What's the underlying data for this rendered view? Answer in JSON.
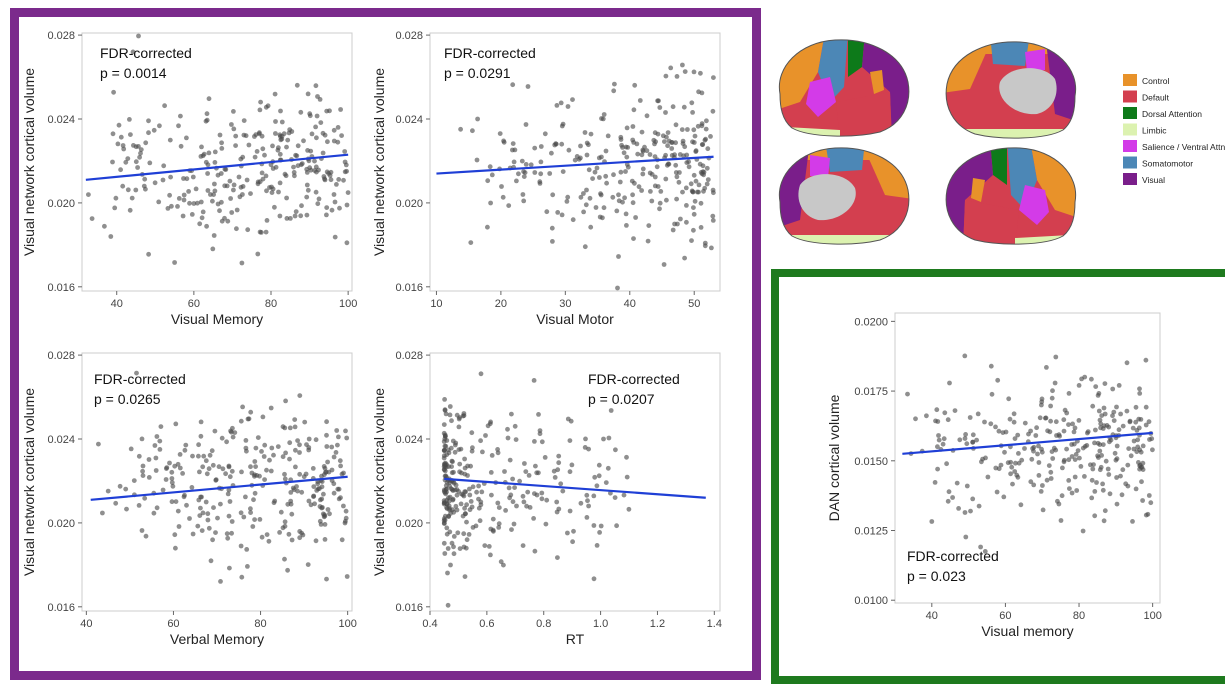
{
  "colors": {
    "frame_purple": "#7b2a8c",
    "frame_green": "#1e7a1e",
    "regression_line": "#1f3fd6",
    "points": "#4a4a4a",
    "panel_border": "#cccccc"
  },
  "legend": {
    "items": [
      {
        "label": "Control",
        "color": "#e8922a"
      },
      {
        "label": "Default",
        "color": "#d33f4f"
      },
      {
        "label": "Dorsal Attention",
        "color": "#0d7a1a"
      },
      {
        "label": "Limbic",
        "color": "#dcf2b0"
      },
      {
        "label": "Salience / Ventral Attn",
        "color": "#d33be8"
      },
      {
        "label": "Somatomotor",
        "color": "#4c87b6"
      },
      {
        "label": "Visual",
        "color": "#7a1e8a"
      }
    ]
  },
  "chart_data": [
    {
      "type": "scatter",
      "xlabel": "Visual Memory",
      "ylabel": "Visual network cortical volume",
      "annotation": [
        "FDR-corrected",
        "p = 0.0014"
      ],
      "xlim": [
        31,
        101
      ],
      "ylim": [
        0.0158,
        0.0281
      ],
      "xticks": [
        40,
        60,
        80,
        100
      ],
      "xtick_labels": [
        "40",
        "60",
        "80",
        "100"
      ],
      "yticks": [
        0.016,
        0.02,
        0.024,
        0.028
      ],
      "ytick_labels": [
        "0.016",
        "0.020",
        "0.024",
        "0.028"
      ],
      "fit": {
        "x": [
          32,
          100
        ],
        "y": [
          0.0211,
          0.0223
        ]
      },
      "x_range": [
        32,
        100
      ],
      "x_skew": 0.6,
      "y_mean": 0.0217,
      "y_sd": 0.0018,
      "n": 300,
      "seed": 11
    },
    {
      "type": "scatter",
      "xlabel": "Visual Motor",
      "ylabel": "Visual network cortical volume",
      "annotation": [
        "FDR-corrected",
        "p = 0.0291"
      ],
      "xlim": [
        9,
        54
      ],
      "ylim": [
        0.0158,
        0.0281
      ],
      "xticks": [
        10,
        20,
        30,
        40,
        50
      ],
      "xtick_labels": [
        "10",
        "20",
        "30",
        "40",
        "50"
      ],
      "yticks": [
        0.016,
        0.02,
        0.024,
        0.028
      ],
      "ytick_labels": [
        "0.016",
        "0.020",
        "0.024",
        "0.028"
      ],
      "fit": {
        "x": [
          10,
          53
        ],
        "y": [
          0.0214,
          0.0222
        ]
      },
      "x_range": [
        10,
        53
      ],
      "x_skew": 0.45,
      "y_mean": 0.0219,
      "y_sd": 0.0018,
      "n": 300,
      "seed": 23
    },
    {
      "type": "scatter",
      "xlabel": "Verbal Memory",
      "ylabel": "Visual network cortical volume",
      "annotation": [
        "FDR-corrected",
        "p = 0.0265"
      ],
      "xlim": [
        39,
        101
      ],
      "ylim": [
        0.0158,
        0.0281
      ],
      "xticks": [
        40,
        60,
        80,
        100
      ],
      "xtick_labels": [
        "40",
        "60",
        "80",
        "100"
      ],
      "yticks": [
        0.016,
        0.02,
        0.024,
        0.028
      ],
      "ytick_labels": [
        "0.016",
        "0.020",
        "0.024",
        "0.028"
      ],
      "fit": {
        "x": [
          41,
          100
        ],
        "y": [
          0.0211,
          0.0222
        ]
      },
      "x_range": [
        41,
        100
      ],
      "x_skew": 0.6,
      "y_mean": 0.0217,
      "y_sd": 0.0018,
      "n": 300,
      "seed": 37
    },
    {
      "type": "scatter",
      "xlabel": "RT",
      "ylabel": "Visual network cortical volume",
      "annotation": [
        "FDR-corrected",
        "p = 0.0207"
      ],
      "xlim": [
        0.4,
        1.42
      ],
      "ylim": [
        0.0158,
        0.0281
      ],
      "xticks": [
        0.4,
        0.6,
        0.8,
        1.0,
        1.2,
        1.4
      ],
      "xtick_labels": [
        "0.4",
        "0.6",
        "0.8",
        "1.0",
        "1.2",
        "1.4"
      ],
      "yticks": [
        0.016,
        0.02,
        0.024,
        0.028
      ],
      "ytick_labels": [
        "0.016",
        "0.020",
        "0.024",
        "0.028"
      ],
      "fit": {
        "x": [
          0.45,
          1.37
        ],
        "y": [
          0.0221,
          0.0212
        ]
      },
      "x_range": [
        0.45,
        1.1
      ],
      "x_skew": 2.6,
      "y_mean": 0.0218,
      "y_sd": 0.0018,
      "n": 300,
      "seed": 51
    },
    {
      "type": "scatter",
      "xlabel": "Visual memory",
      "ylabel": "DAN cortical volume",
      "annotation": [
        "FDR-corrected",
        "p = 0.023"
      ],
      "xlim": [
        30,
        102
      ],
      "ylim": [
        0.0099,
        0.0203
      ],
      "xticks": [
        40,
        60,
        80,
        100
      ],
      "xtick_labels": [
        "40",
        "60",
        "80",
        "100"
      ],
      "yticks": [
        0.01,
        0.0125,
        0.015,
        0.0175,
        0.02
      ],
      "ytick_labels": [
        "0.0100",
        "0.0125",
        "0.0150",
        "0.0175",
        "0.0200"
      ],
      "fit": {
        "x": [
          32,
          100
        ],
        "y": [
          0.01525,
          0.016
        ]
      },
      "x_range": [
        32,
        100
      ],
      "x_skew": 0.6,
      "y_mean": 0.0156,
      "y_sd": 0.0013,
      "n": 300,
      "seed": 73
    }
  ]
}
